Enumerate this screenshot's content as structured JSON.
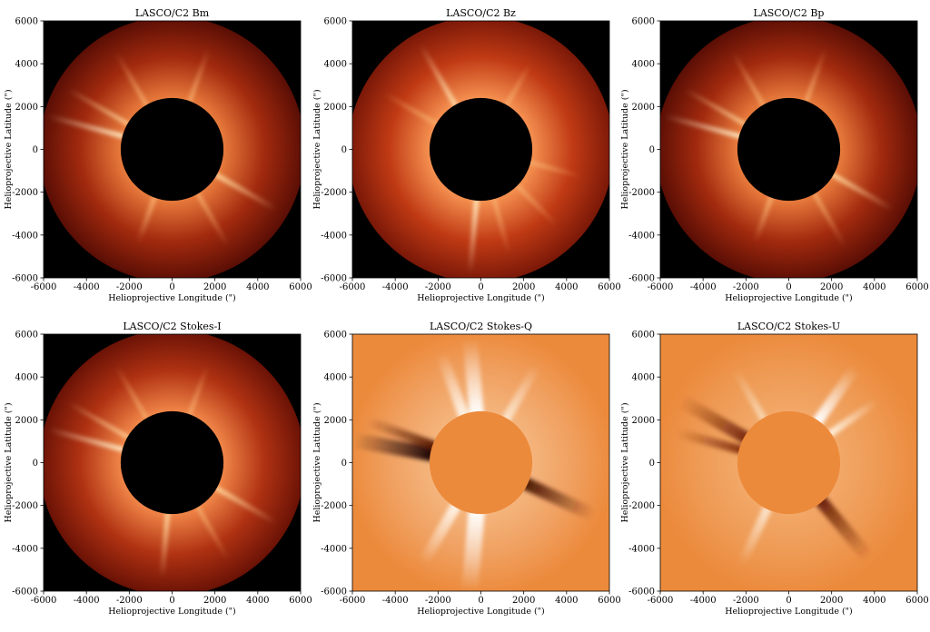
{
  "chart_data": [
    {
      "type": "heatmap",
      "title": "LASCO/C2 Bm",
      "xlabel": "Helioprojective Longitude (\")",
      "ylabel": "Helioprojective Latitude (\")",
      "xlim": [
        -6000,
        6000
      ],
      "ylim": [
        -6000,
        6000
      ],
      "xticks": [
        -6000,
        -4000,
        -2000,
        0,
        2000,
        4000,
        6000
      ],
      "yticks": [
        -6000,
        -4000,
        -2000,
        0,
        2000,
        4000,
        6000
      ],
      "occulter_radius": 2400,
      "field_radius": 6200,
      "colormap": "intensity",
      "colors": {
        "background": "#000000",
        "occulter": "#000000",
        "outer": "#5a0e05",
        "mid": "#a22a0e",
        "inner": "#e87a3c"
      },
      "streamers": [
        {
          "angle": 165,
          "length": 3600,
          "width": 5,
          "color": "#fff3d0"
        },
        {
          "angle": 150,
          "length": 3200,
          "width": 4,
          "color": "#ffd9a0"
        },
        {
          "angle": 120,
          "length": 2800,
          "width": 4,
          "color": "#f7b070"
        },
        {
          "angle": 70,
          "length": 2600,
          "width": 4,
          "color": "#f7b070"
        },
        {
          "angle": 300,
          "length": 2800,
          "width": 4,
          "color": "#f7b070"
        },
        {
          "angle": 330,
          "length": 3200,
          "width": 5,
          "color": "#ffd9a0"
        },
        {
          "angle": 250,
          "length": 2200,
          "width": 5,
          "color": "#f7b070"
        }
      ],
      "grid": false
    },
    {
      "type": "heatmap",
      "title": "LASCO/C2 Bz",
      "xlabel": "Helioprojective Longitude (\")",
      "ylabel": "Helioprojective Latitude (\")",
      "xlim": [
        -6000,
        6000
      ],
      "ylim": [
        -6000,
        6000
      ],
      "xticks": [
        -6000,
        -4000,
        -2000,
        0,
        2000,
        4000,
        6000
      ],
      "yticks": [
        -6000,
        -4000,
        -2000,
        0,
        2000,
        4000,
        6000
      ],
      "occulter_radius": 2400,
      "field_radius": 6200,
      "colormap": "intensity",
      "colors": {
        "background": "#000000",
        "occulter": "#000000",
        "outer": "#7a1808",
        "mid": "#c03a14",
        "inner": "#f59050"
      },
      "streamers": [
        {
          "angle": 120,
          "length": 3200,
          "width": 5,
          "color": "#ffe2b0"
        },
        {
          "angle": 150,
          "length": 2800,
          "width": 4,
          "color": "#f7b070"
        },
        {
          "angle": 265,
          "length": 3400,
          "width": 5,
          "color": "#fff0c8"
        },
        {
          "angle": 285,
          "length": 2600,
          "width": 4,
          "color": "#f7b070"
        },
        {
          "angle": 315,
          "length": 2600,
          "width": 4,
          "color": "#f7b070"
        },
        {
          "angle": 60,
          "length": 2200,
          "width": 4,
          "color": "#f7b070"
        },
        {
          "angle": 345,
          "length": 2400,
          "width": 4,
          "color": "#f7b070"
        }
      ],
      "grid": false
    },
    {
      "type": "heatmap",
      "title": "LASCO/C2 Bp",
      "xlabel": "Helioprojective Longitude (\")",
      "ylabel": "Helioprojective Latitude (\")",
      "xlim": [
        -6000,
        6000
      ],
      "ylim": [
        -6000,
        6000
      ],
      "xticks": [
        -6000,
        -4000,
        -2000,
        0,
        2000,
        4000,
        6000
      ],
      "yticks": [
        -6000,
        -4000,
        -2000,
        0,
        2000,
        4000,
        6000
      ],
      "occulter_radius": 2400,
      "field_radius": 6200,
      "colormap": "intensity",
      "colors": {
        "background": "#000000",
        "occulter": "#000000",
        "outer": "#5a0e05",
        "mid": "#a22a0e",
        "inner": "#e87a3c"
      },
      "streamers": [
        {
          "angle": 165,
          "length": 3600,
          "width": 5,
          "color": "#fff3d0"
        },
        {
          "angle": 150,
          "length": 3200,
          "width": 4,
          "color": "#ffd9a0"
        },
        {
          "angle": 120,
          "length": 2800,
          "width": 4,
          "color": "#f7b070"
        },
        {
          "angle": 70,
          "length": 2600,
          "width": 4,
          "color": "#f7b070"
        },
        {
          "angle": 300,
          "length": 2800,
          "width": 4,
          "color": "#f7b070"
        },
        {
          "angle": 330,
          "length": 3200,
          "width": 5,
          "color": "#ffd9a0"
        },
        {
          "angle": 250,
          "length": 2200,
          "width": 5,
          "color": "#f7b070"
        }
      ],
      "grid": false
    },
    {
      "type": "heatmap",
      "title": "LASCO/C2 Stokes-I",
      "xlabel": "Helioprojective Longitude (\")",
      "ylabel": "Helioprojective Latitude (\")",
      "xlim": [
        -6000,
        6000
      ],
      "ylim": [
        -6000,
        6000
      ],
      "xticks": [
        -6000,
        -4000,
        -2000,
        0,
        2000,
        4000,
        6000
      ],
      "yticks": [
        -6000,
        -4000,
        -2000,
        0,
        2000,
        4000,
        6000
      ],
      "occulter_radius": 2400,
      "field_radius": 6200,
      "colormap": "intensity",
      "colors": {
        "background": "#000000",
        "occulter": "#000000",
        "outer": "#6a1206",
        "mid": "#b03212",
        "inner": "#f08548"
      },
      "streamers": [
        {
          "angle": 165,
          "length": 3600,
          "width": 5,
          "color": "#fff3d0"
        },
        {
          "angle": 150,
          "length": 3200,
          "width": 4,
          "color": "#ffd9a0"
        },
        {
          "angle": 120,
          "length": 2800,
          "width": 4,
          "color": "#f7b070"
        },
        {
          "angle": 265,
          "length": 3000,
          "width": 5,
          "color": "#ffd9a0"
        },
        {
          "angle": 300,
          "length": 2800,
          "width": 4,
          "color": "#f7b070"
        },
        {
          "angle": 330,
          "length": 3200,
          "width": 5,
          "color": "#ffd9a0"
        },
        {
          "angle": 70,
          "length": 2400,
          "width": 4,
          "color": "#f7b070"
        }
      ],
      "grid": false
    },
    {
      "type": "heatmap",
      "title": "LASCO/C2 Stokes-Q",
      "xlabel": "Helioprojective Longitude (\")",
      "ylabel": "Helioprojective Latitude (\")",
      "xlim": [
        -6000,
        6000
      ],
      "ylim": [
        -6000,
        6000
      ],
      "xticks": [
        -6000,
        -4000,
        -2000,
        0,
        2000,
        4000,
        6000
      ],
      "yticks": [
        -6000,
        -4000,
        -2000,
        0,
        2000,
        4000,
        6000
      ],
      "occulter_radius": 2400,
      "field_radius": 6200,
      "colormap": "diverging",
      "colors": {
        "background": "#ec8a3c",
        "occulter": "#ec8a3c",
        "outer": "#ec8a3c",
        "mid": "#f0a060",
        "inner": "#f4b47c"
      },
      "streamers": [
        {
          "angle": 170,
          "length": 3600,
          "width": 16,
          "color": "#1a0602"
        },
        {
          "angle": 160,
          "length": 3200,
          "width": 10,
          "color": "#5a1a06"
        },
        {
          "angle": 335,
          "length": 3400,
          "width": 14,
          "color": "#4a1404"
        },
        {
          "angle": 95,
          "length": 3400,
          "width": 16,
          "color": "#ffffff"
        },
        {
          "angle": 110,
          "length": 3000,
          "width": 12,
          "color": "#fff4e8"
        },
        {
          "angle": 265,
          "length": 3600,
          "width": 18,
          "color": "#ffffff"
        },
        {
          "angle": 240,
          "length": 3000,
          "width": 12,
          "color": "#fff4e8"
        },
        {
          "angle": 60,
          "length": 2800,
          "width": 10,
          "color": "#fbe4cc"
        }
      ],
      "grid": false
    },
    {
      "type": "heatmap",
      "title": "LASCO/C2 Stokes-U",
      "xlabel": "Helioprojective Longitude (\")",
      "ylabel": "Helioprojective Latitude (\")",
      "xlim": [
        -6000,
        6000
      ],
      "ylim": [
        -6000,
        6000
      ],
      "xticks": [
        -6000,
        -4000,
        -2000,
        0,
        2000,
        4000,
        6000
      ],
      "yticks": [
        -6000,
        -4000,
        -2000,
        0,
        2000,
        4000,
        6000
      ],
      "occulter_radius": 2400,
      "field_radius": 6200,
      "colormap": "diverging",
      "colors": {
        "background": "#ec8a3c",
        "occulter": "#ec8a3c",
        "outer": "#ec8a3c",
        "mid": "#ee9a54",
        "inner": "#f2a868"
      },
      "streamers": [
        {
          "angle": 150,
          "length": 3400,
          "width": 14,
          "color": "#7a2a0a"
        },
        {
          "angle": 165,
          "length": 3000,
          "width": 10,
          "color": "#8a3410"
        },
        {
          "angle": 310,
          "length": 3400,
          "width": 14,
          "color": "#6a2008"
        },
        {
          "angle": 55,
          "length": 3000,
          "width": 12,
          "color": "#ffffff"
        },
        {
          "angle": 35,
          "length": 2600,
          "width": 8,
          "color": "#fff2e0"
        },
        {
          "angle": 245,
          "length": 2800,
          "width": 10,
          "color": "#fbe4cc"
        },
        {
          "angle": 120,
          "length": 2600,
          "width": 8,
          "color": "#f8d6b0"
        }
      ],
      "grid": false
    }
  ]
}
